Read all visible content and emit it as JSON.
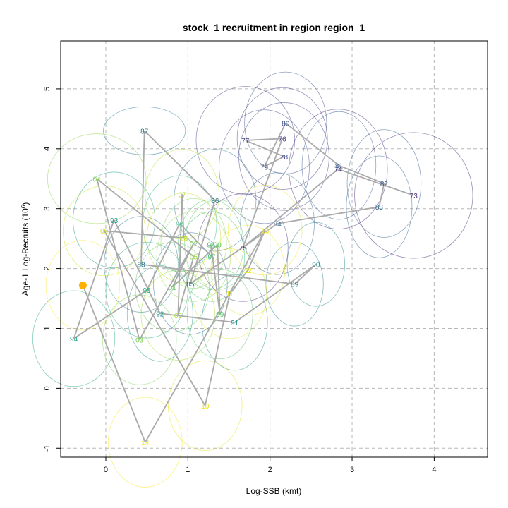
{
  "chart_data": {
    "type": "scatter",
    "title": "stock_1 recruitment in region region_1",
    "xlabel": "Log-SSB (kmt)",
    "ylabel_main": "Age-1 Log-Recruits (10",
    "ylabel_sup": "6",
    "ylabel_close": ")",
    "xlim": [
      -0.55,
      4.65
    ],
    "ylim": [
      -1.15,
      5.8
    ],
    "x_ticks": [
      0,
      1,
      2,
      3,
      4
    ],
    "y_ticks": [
      -1,
      0,
      1,
      2,
      3,
      4,
      5
    ],
    "grid": true,
    "points": [
      {
        "label": "73",
        "x": 3.75,
        "y": 3.22,
        "rx": 0.72,
        "ry": 1.05,
        "color": "#472b7a"
      },
      {
        "label": "74",
        "x": 2.83,
        "y": 3.66,
        "rx": 0.6,
        "ry": 1.0,
        "color": "#472d7b"
      },
      {
        "label": "75",
        "x": 1.67,
        "y": 2.35,
        "rx": 0.55,
        "ry": 0.9,
        "color": "#46337e"
      },
      {
        "label": "76",
        "x": 2.15,
        "y": 4.17,
        "rx": 0.55,
        "ry": 0.85,
        "color": "#443983"
      },
      {
        "label": "77",
        "x": 1.7,
        "y": 4.14,
        "rx": 0.6,
        "ry": 0.9,
        "color": "#423f85"
      },
      {
        "label": "78",
        "x": 2.17,
        "y": 3.87,
        "rx": 0.55,
        "ry": 0.9,
        "color": "#3f4788"
      },
      {
        "label": "79",
        "x": 1.93,
        "y": 3.7,
        "rx": 0.55,
        "ry": 0.95,
        "color": "#3e4c8a"
      },
      {
        "label": "80",
        "x": 2.19,
        "y": 4.43,
        "rx": 0.5,
        "ry": 0.85,
        "color": "#3b518b"
      },
      {
        "label": "81",
        "x": 2.84,
        "y": 3.72,
        "rx": 0.45,
        "ry": 0.9,
        "color": "#38588c"
      },
      {
        "label": "82",
        "x": 3.39,
        "y": 3.42,
        "rx": 0.45,
        "ry": 0.9,
        "color": "#355e8d"
      },
      {
        "label": "83",
        "x": 3.33,
        "y": 3.03,
        "rx": 0.4,
        "ry": 0.85,
        "color": "#33638d"
      },
      {
        "label": "84",
        "x": 2.09,
        "y": 2.75,
        "rx": 0.45,
        "ry": 0.85,
        "color": "#31688e"
      },
      {
        "label": "85",
        "x": 1.03,
        "y": 1.75,
        "rx": 0.45,
        "ry": 0.85,
        "color": "#2e6d8e"
      },
      {
        "label": "86",
        "x": 1.33,
        "y": 3.14,
        "rx": 0.5,
        "ry": 0.85,
        "color": "#2c728e"
      },
      {
        "label": "87",
        "x": 0.47,
        "y": 4.3,
        "rx": 0.5,
        "ry": 0.4,
        "color": "#2a788e"
      },
      {
        "label": "88",
        "x": 0.43,
        "y": 2.07,
        "rx": 0.45,
        "ry": 0.8,
        "color": "#287d8e"
      },
      {
        "label": "89",
        "x": 2.3,
        "y": 1.74,
        "rx": 0.35,
        "ry": 0.7,
        "color": "#26828e"
      },
      {
        "label": "90",
        "x": 2.56,
        "y": 2.07,
        "rx": 0.35,
        "ry": 0.7,
        "color": "#24878e"
      },
      {
        "label": "91",
        "x": 1.57,
        "y": 1.1,
        "rx": 0.4,
        "ry": 0.8,
        "color": "#218e8d"
      },
      {
        "label": "92",
        "x": 0.66,
        "y": 1.25,
        "rx": 0.4,
        "ry": 0.8,
        "color": "#1f958b"
      },
      {
        "label": "93",
        "x": 0.1,
        "y": 2.81,
        "rx": 0.5,
        "ry": 0.8,
        "color": "#1f9a8a"
      },
      {
        "label": "94",
        "x": -0.39,
        "y": 0.83,
        "rx": 0.5,
        "ry": 0.8,
        "color": "#21a585"
      },
      {
        "label": "95",
        "x": 0.5,
        "y": 1.64,
        "rx": 0.5,
        "ry": 0.8,
        "color": "#29af7f"
      },
      {
        "label": "96",
        "x": 0.9,
        "y": 2.75,
        "rx": 0.45,
        "ry": 0.8,
        "color": "#32b67a"
      },
      {
        "label": "97",
        "x": 1.29,
        "y": 2.2,
        "rx": 0.4,
        "ry": 0.75,
        "color": "#3dbc74"
      },
      {
        "label": "98",
        "x": 1.28,
        "y": 2.4,
        "rx": 0.4,
        "ry": 0.75,
        "color": "#4ac16d"
      },
      {
        "label": "99",
        "x": 1.39,
        "y": 1.24,
        "rx": 0.4,
        "ry": 0.75,
        "color": "#56c667"
      },
      {
        "label": "00",
        "x": 1.36,
        "y": 2.4,
        "rx": 0.4,
        "ry": 0.75,
        "color": "#5ec962"
      },
      {
        "label": "01",
        "x": 0.81,
        "y": 1.69,
        "rx": 0.45,
        "ry": 0.75,
        "color": "#6ccd5a"
      },
      {
        "label": "02",
        "x": 1.07,
        "y": 2.42,
        "rx": 0.4,
        "ry": 0.75,
        "color": "#7ad151"
      },
      {
        "label": "03",
        "x": 0.41,
        "y": 0.81,
        "rx": 0.45,
        "ry": 0.75,
        "color": "#7ad151"
      },
      {
        "label": "04",
        "x": -0.11,
        "y": 3.5,
        "rx": 0.6,
        "ry": 0.75,
        "color": "#8bd646"
      },
      {
        "label": "05",
        "x": 1.07,
        "y": 2.2,
        "rx": 0.45,
        "ry": 0.75,
        "color": "#98d83e"
      },
      {
        "label": "06",
        "x": 0.88,
        "y": 1.22,
        "rx": 0.45,
        "ry": 0.75,
        "color": "#a8db34"
      },
      {
        "label": "07",
        "x": 0.93,
        "y": 3.24,
        "rx": 0.45,
        "ry": 0.75,
        "color": "#b5de2b"
      },
      {
        "label": "08",
        "x": 0.95,
        "y": 2.51,
        "rx": 0.45,
        "ry": 0.75,
        "color": "#c2df23"
      },
      {
        "label": "09",
        "x": -0.02,
        "y": 2.63,
        "rx": 0.5,
        "ry": 0.75,
        "color": "#d2e21b"
      },
      {
        "label": "10",
        "x": 1.21,
        "y": -0.29,
        "rx": 0.45,
        "ry": 0.75,
        "color": "#e2e418"
      },
      {
        "label": "11",
        "x": 1.51,
        "y": 1.58,
        "rx": 0.45,
        "ry": 0.75,
        "color": "#e8e419"
      },
      {
        "label": "12",
        "x": 1.73,
        "y": 1.97,
        "rx": 0.45,
        "ry": 0.75,
        "color": "#ece51b"
      },
      {
        "label": "13",
        "x": 1.94,
        "y": 2.64,
        "rx": 0.45,
        "ry": 0.75,
        "color": "#f1e51d"
      },
      {
        "label": "14",
        "x": 0.48,
        "y": -0.9,
        "rx": 0.45,
        "ry": 0.75,
        "color": "#f6e620"
      },
      {
        "label": "15",
        "x": -0.28,
        "y": 1.72,
        "rx": 0.45,
        "ry": 0.75,
        "color": "#fde725"
      }
    ],
    "highlight_color": "#ffb000",
    "path_color": "#aaaaaa"
  }
}
